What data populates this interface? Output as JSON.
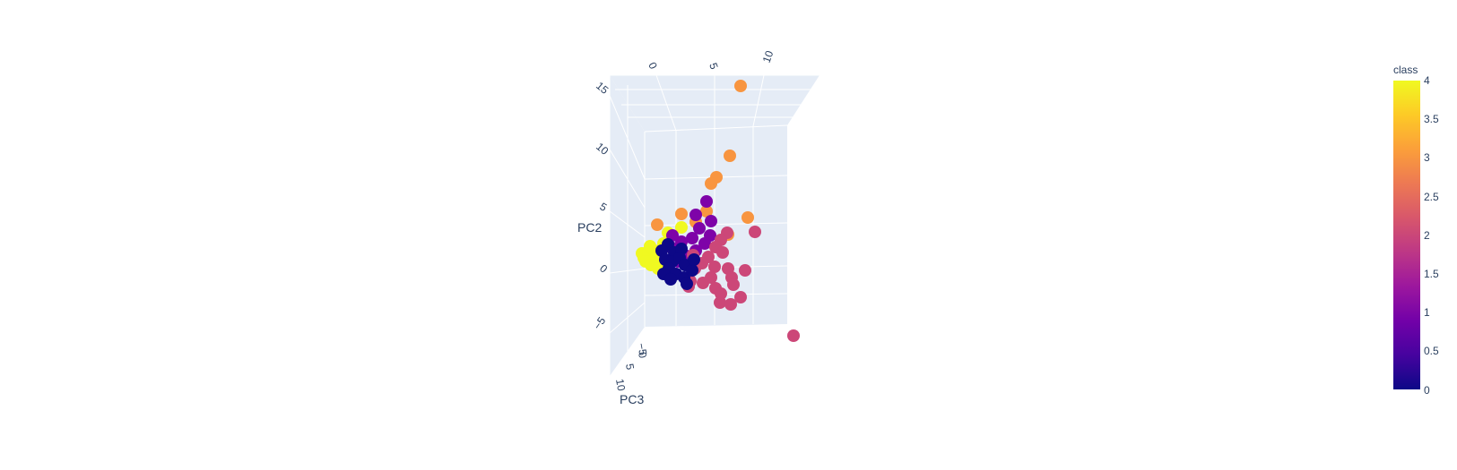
{
  "chart_data": {
    "type": "scatter",
    "subtype": "scatter3d",
    "title": "",
    "axes": {
      "x": {
        "title": "",
        "ticks": [
          "0",
          "5",
          "10"
        ]
      },
      "y": {
        "title": "PC2",
        "ticks": [
          "15",
          "10",
          "5",
          "0",
          "−5"
        ]
      },
      "z": {
        "title": "PC3",
        "ticks": [
          "−5",
          "0",
          "5",
          "10"
        ]
      }
    },
    "grid": true,
    "background": "#e5ecf6",
    "gridcolor": "#ffffff",
    "colorbar": {
      "title": "class",
      "range": [
        0,
        4
      ],
      "ticks": [
        "4",
        "3.5",
        "3",
        "2.5",
        "2",
        "1.5",
        "1",
        "0.5",
        "0"
      ],
      "colorscale": [
        "#0d0887",
        "#46039f",
        "#7201a8",
        "#9c179e",
        "#bd3786",
        "#d8576b",
        "#ed7953",
        "#fb9f3a",
        "#fdca26",
        "#f0f921"
      ],
      "placement": "right"
    },
    "series": [
      {
        "class": 0,
        "color": "#0d0887"
      },
      {
        "class": 1,
        "color": "#7e03a8"
      },
      {
        "class": 2,
        "color": "#cc4778"
      },
      {
        "class": 3,
        "color": "#f89540"
      },
      {
        "class": 4,
        "color": "#f0f921"
      }
    ]
  }
}
